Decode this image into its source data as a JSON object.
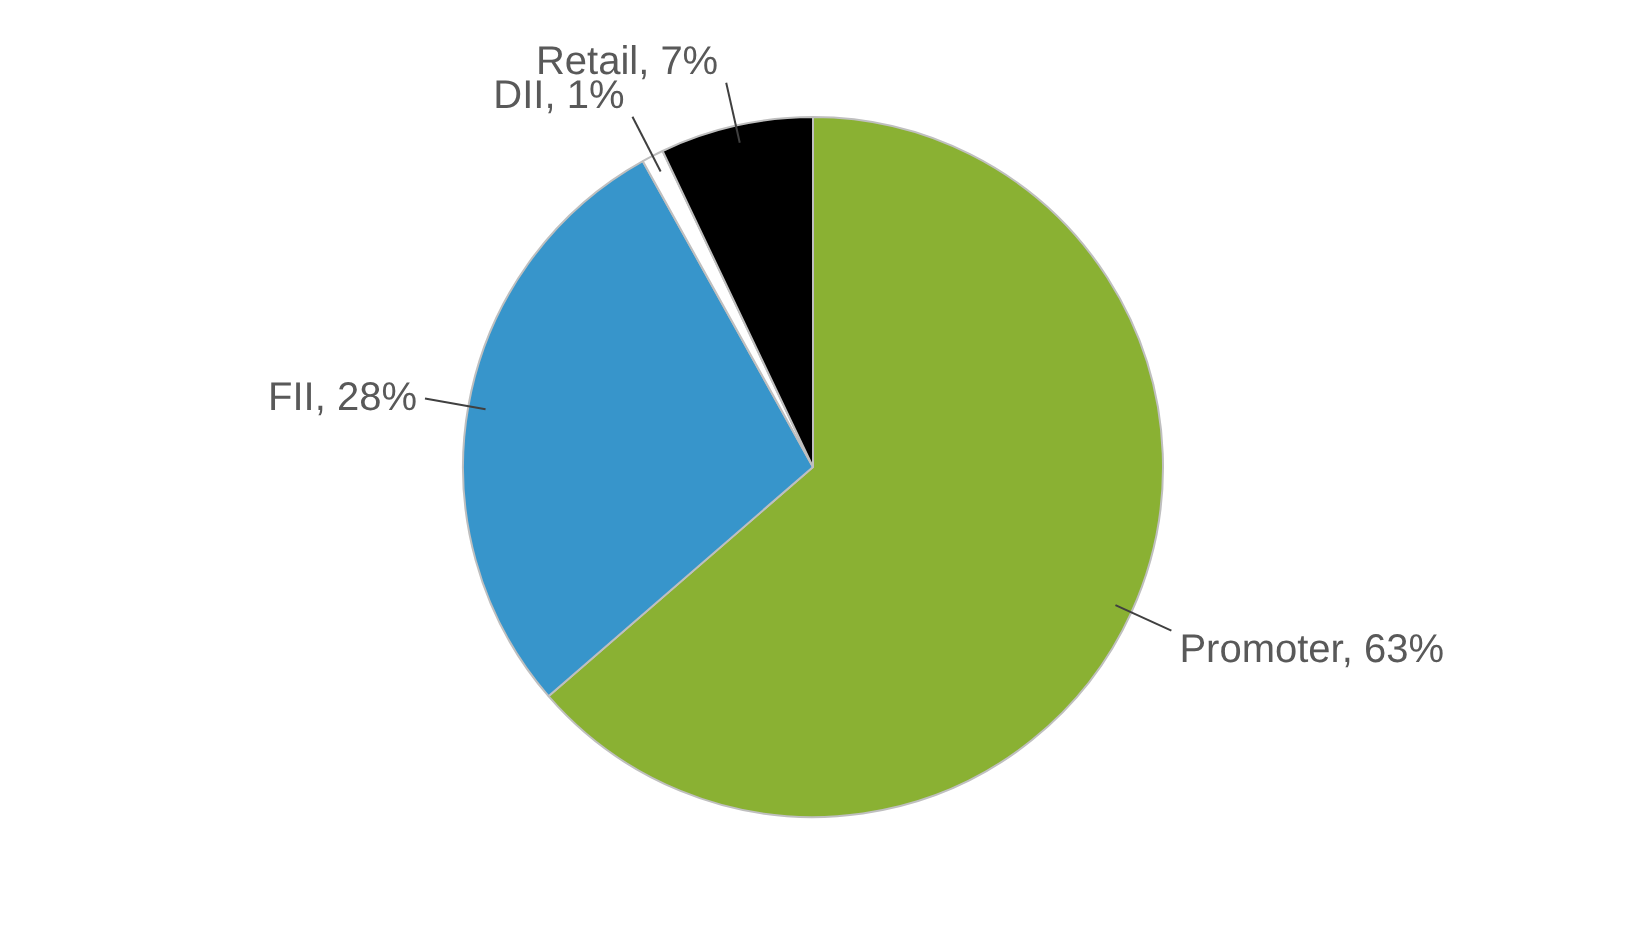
{
  "chart_data": {
    "type": "pie",
    "categories": [
      "Promoter",
      "FII",
      "DII",
      "Retail"
    ],
    "values": [
      63,
      28,
      1,
      7
    ],
    "value_labels": [
      "63%",
      "28%",
      "1%",
      "7%"
    ],
    "colors": [
      "#8ab133",
      "#3795cb",
      "#ffffff",
      "#000000"
    ],
    "legend": false
  }
}
